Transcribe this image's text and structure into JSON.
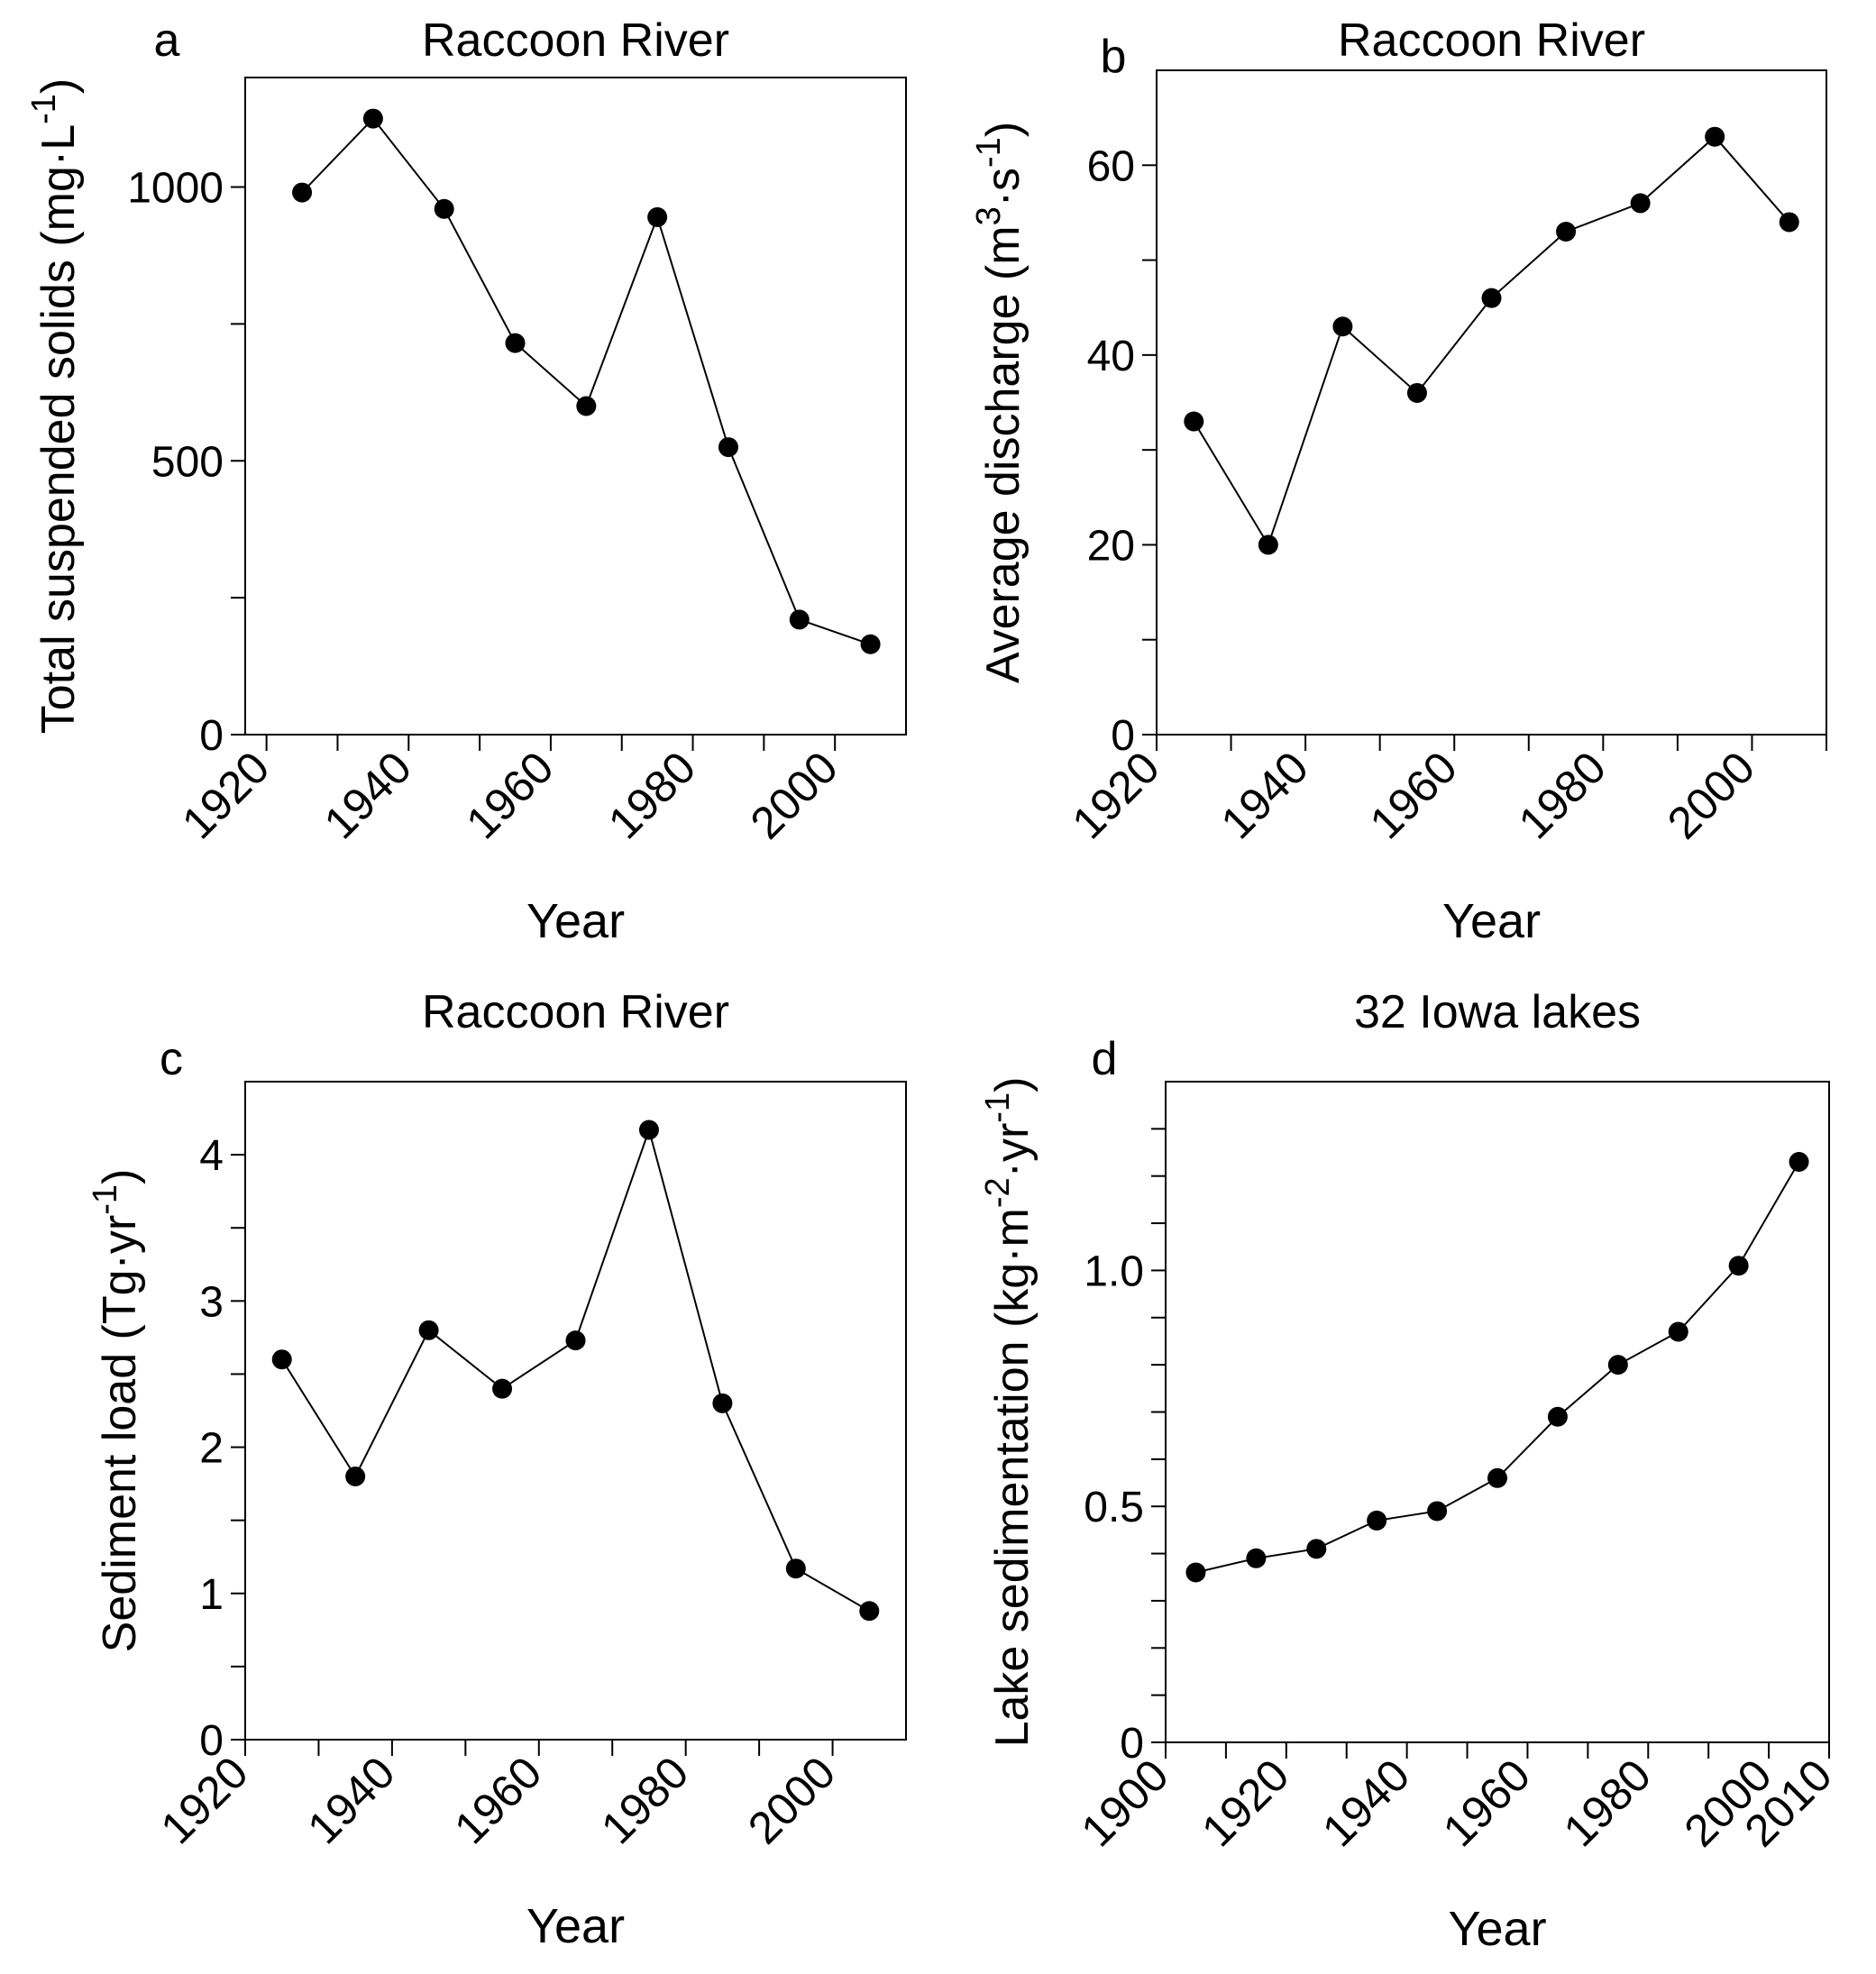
{
  "chart_data": [
    {
      "type": "line",
      "panel_letter": "a",
      "title": "Raccoon River",
      "xlabel": "Year",
      "ylabel_parts": [
        {
          "text": "Total suspended solids (mg·L"
        },
        {
          "text": "-1",
          "sup": true
        },
        {
          "text": ")"
        }
      ],
      "xlim": [
        1917,
        2010
      ],
      "ylim": [
        0,
        1200
      ],
      "xticks": [
        1920,
        1940,
        1960,
        1980,
        2000
      ],
      "xtick_labels": [
        "1920",
        "1940",
        "1960",
        "1980",
        "2000"
      ],
      "xminor": [
        1930,
        1950,
        1970,
        1990
      ],
      "yticks": [
        0,
        500,
        1000
      ],
      "ytick_labels": [
        "0",
        "500",
        "1000"
      ],
      "yminor": [
        250,
        750
      ],
      "marker": "circle",
      "x": [
        1925,
        1935,
        1945,
        1955,
        1965,
        1975,
        1985,
        1995,
        2005
      ],
      "y": [
        990,
        1125,
        960,
        715,
        600,
        945,
        525,
        210,
        165
      ]
    },
    {
      "type": "line",
      "panel_letter": "b",
      "title": "Raccoon River",
      "xlabel": "Year",
      "ylabel_parts": [
        {
          "text": "Average discharge (m"
        },
        {
          "text": "3",
          "sup": true
        },
        {
          "text": "·s"
        },
        {
          "text": "-1",
          "sup": true
        },
        {
          "text": ")"
        }
      ],
      "xlim": [
        1920,
        2010
      ],
      "ylim": [
        0,
        70
      ],
      "xticks": [
        1920,
        1940,
        1960,
        1980,
        2000
      ],
      "xtick_labels": [
        "1920",
        "1940",
        "1960",
        "1980",
        "2000"
      ],
      "xminor": [
        1930,
        1950,
        1970,
        1990,
        2010
      ],
      "yticks": [
        0,
        20,
        40,
        60
      ],
      "ytick_labels": [
        "0",
        "20",
        "40",
        "60"
      ],
      "yminor": [
        10,
        30,
        50
      ],
      "marker": "circle",
      "x": [
        1925,
        1935,
        1945,
        1955,
        1965,
        1975,
        1985,
        1995,
        2005
      ],
      "y": [
        33,
        20,
        43,
        36,
        46,
        53,
        56,
        63,
        54
      ]
    },
    {
      "type": "line",
      "panel_letter": "c",
      "title": "Raccoon River",
      "xlabel": "Year",
      "ylabel_parts": [
        {
          "text": "Sediment load (Tg·yr"
        },
        {
          "text": "-1",
          "sup": true
        },
        {
          "text": ")"
        }
      ],
      "xlim": [
        1920,
        2010
      ],
      "ylim": [
        0,
        4.5
      ],
      "xticks": [
        1920,
        1940,
        1960,
        1980,
        2000
      ],
      "xtick_labels": [
        "1920",
        "1940",
        "1960",
        "1980",
        "2000"
      ],
      "xminor": [
        1930,
        1950,
        1970,
        1990
      ],
      "yticks": [
        0,
        1,
        2,
        3,
        4
      ],
      "ytick_labels": [
        "0",
        "1",
        "2",
        "3",
        "4"
      ],
      "yminor": [
        0.5,
        1.5,
        2.5,
        3.5
      ],
      "marker": "circle",
      "x": [
        1925,
        1935,
        1945,
        1955,
        1965,
        1975,
        1985,
        1995,
        2005
      ],
      "y": [
        2.6,
        1.8,
        2.8,
        2.4,
        2.73,
        4.17,
        2.3,
        1.17,
        0.88
      ]
    },
    {
      "type": "line",
      "panel_letter": "d",
      "title": "32 Iowa lakes",
      "xlabel": "Year",
      "ylabel_parts": [
        {
          "text": "Lake sedimentation (kg·m"
        },
        {
          "text": "-2",
          "sup": true
        },
        {
          "text": "·yr"
        },
        {
          "text": "-1",
          "sup": true
        },
        {
          "text": ")"
        }
      ],
      "xlim": [
        1900,
        2010
      ],
      "ylim": [
        0,
        1.4
      ],
      "xticks": [
        1900,
        1920,
        1940,
        1960,
        1980,
        2000,
        2010
      ],
      "xtick_labels": [
        "1900",
        "1920",
        "1940",
        "1960",
        "1980",
        "2000",
        "2010"
      ],
      "xminor": [
        1910,
        1930,
        1950,
        1970,
        1990
      ],
      "yticks": [
        0,
        0.5,
        1.0
      ],
      "ytick_labels": [
        "0",
        "0.5",
        "1.0"
      ],
      "yminor": [
        0.1,
        0.2,
        0.3,
        0.4,
        0.6,
        0.7,
        0.8,
        0.9,
        1.1,
        1.2,
        1.3
      ],
      "marker": "circle",
      "x": [
        1905,
        1915,
        1925,
        1935,
        1945,
        1955,
        1965,
        1975,
        1985,
        1995,
        2005
      ],
      "y": [
        0.36,
        0.39,
        0.41,
        0.47,
        0.49,
        0.56,
        0.69,
        0.8,
        0.87,
        1.01,
        1.23
      ]
    }
  ]
}
